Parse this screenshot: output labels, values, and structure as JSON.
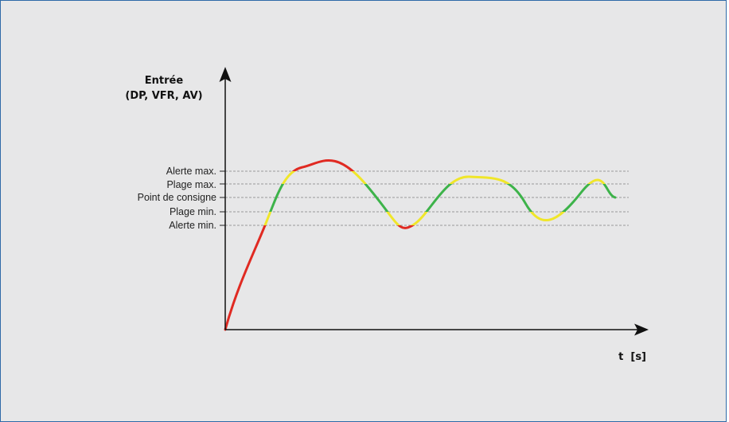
{
  "diagram": {
    "y_axis_title": [
      "Entrée",
      "(DP, VFR, AV)"
    ],
    "x_axis_title": "t  [s]",
    "levels": [
      {
        "key": "alert_max",
        "label": "Alerte max."
      },
      {
        "key": "range_max",
        "label": "Plage max."
      },
      {
        "key": "setpoint",
        "label": "Point de consigne"
      },
      {
        "key": "range_min",
        "label": "Plage min."
      },
      {
        "key": "alert_min",
        "label": "Alerte min."
      }
    ],
    "zone_colors": {
      "alert": "#e02a22",
      "range": "#f0e62a",
      "ok": "#3db34a"
    },
    "panel_border_color": "#2f6aa8",
    "grid_line_color": "#9a9a9a"
  }
}
